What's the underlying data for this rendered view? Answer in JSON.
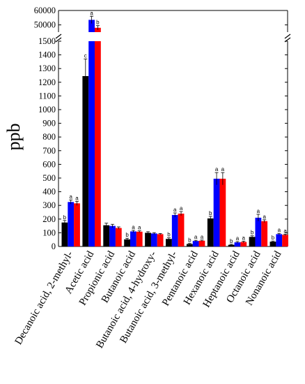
{
  "chart_data": {
    "type": "bar",
    "ylabel": "ppb",
    "y_axis_break": true,
    "lower_ylim": [
      0,
      1500
    ],
    "lower_yticks": [
      0,
      100,
      200,
      300,
      400,
      500,
      600,
      700,
      800,
      900,
      1000,
      1100,
      1200,
      1300,
      1400,
      1500
    ],
    "upper_ylim": [
      45000,
      60000
    ],
    "upper_yticks": [
      50000,
      60000
    ],
    "categories": [
      "Decanoic acid, 2-methyl-",
      "Acetic acid",
      "Propionic acid",
      "Butanoic acid",
      "Butanoic acid, 4-hydroxy-",
      "Butanoic acid, 3-methyl-",
      "Pentanoic acid",
      "Hexanoic acid",
      "Heptanoic acid",
      "Octanoic acid",
      "Nonanoic acid"
    ],
    "series": [
      {
        "color": "#000000",
        "values": [
          175,
          1245,
          155,
          52,
          100,
          55,
          18,
          205,
          12,
          70,
          35
        ],
        "errors": [
          15,
          125,
          15,
          8,
          8,
          8,
          4,
          15,
          4,
          8,
          5
        ],
        "labels": [
          "b",
          "c",
          "",
          "b",
          "",
          "b",
          "b",
          "b",
          "b",
          "b",
          "b"
        ]
      },
      {
        "color": "#0000ff",
        "values": [
          325,
          53500,
          150,
          110,
          95,
          230,
          40,
          495,
          30,
          210,
          90
        ],
        "errors": [
          15,
          2500,
          12,
          8,
          6,
          15,
          5,
          45,
          6,
          25,
          6
        ],
        "labels": [
          "a",
          "a",
          "",
          "a",
          "",
          "a",
          "a",
          "a",
          "a",
          "a",
          "a"
        ]
      },
      {
        "color": "#ff0000",
        "values": [
          315,
          48000,
          135,
          108,
          90,
          240,
          42,
          495,
          33,
          185,
          85
        ],
        "errors": [
          15,
          1500,
          8,
          6,
          5,
          15,
          5,
          45,
          6,
          10,
          5
        ],
        "labels": [
          "a",
          "b",
          "",
          "a",
          "",
          "a",
          "a",
          "a",
          "a",
          "a",
          "a"
        ]
      }
    ]
  }
}
